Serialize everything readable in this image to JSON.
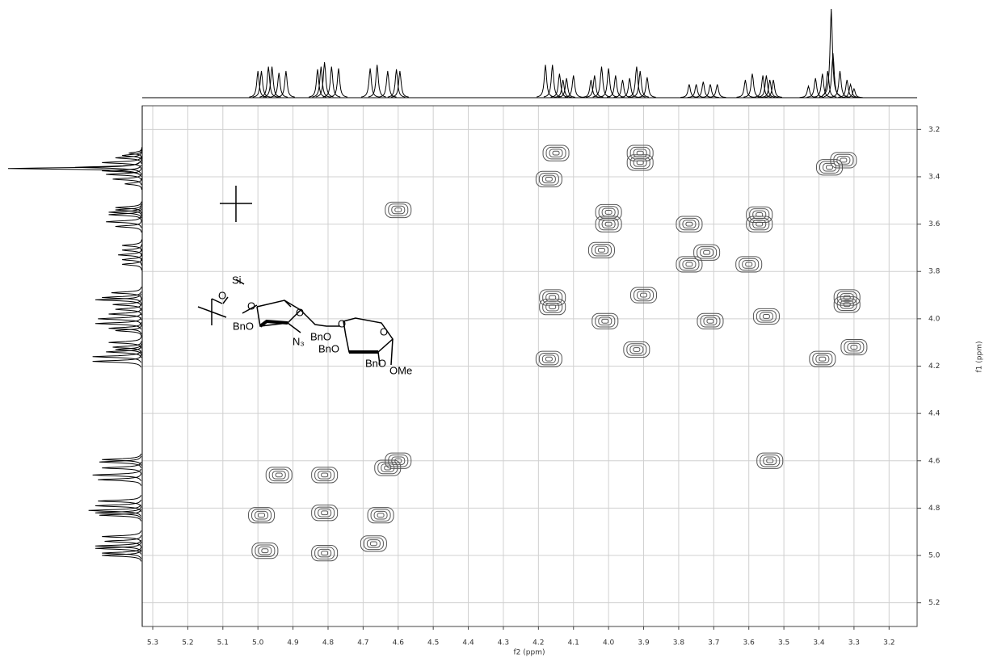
{
  "chart_data": {
    "type": "nmr2d",
    "xlabel": "f2 (ppm)",
    "ylabel": "f1 (ppm)",
    "xlim": [
      5.33,
      3.12
    ],
    "ylim": [
      3.1,
      5.3
    ],
    "xticks": [
      {
        "value": 5.3,
        "label": "5.3"
      },
      {
        "value": 5.2,
        "label": "5.2"
      },
      {
        "value": 5.1,
        "label": "5.1"
      },
      {
        "value": 5.0,
        "label": "5.0"
      },
      {
        "value": 4.9,
        "label": "4.9"
      },
      {
        "value": 4.8,
        "label": "4.8"
      },
      {
        "value": 4.7,
        "label": "4.7"
      },
      {
        "value": 4.6,
        "label": "4.6"
      },
      {
        "value": 4.5,
        "label": "4.5"
      },
      {
        "value": 4.4,
        "label": "4.4"
      },
      {
        "value": 4.3,
        "label": "4.3"
      },
      {
        "value": 4.2,
        "label": "4.2"
      },
      {
        "value": 4.1,
        "label": "4.1"
      },
      {
        "value": 4.0,
        "label": "4.0"
      },
      {
        "value": 3.9,
        "label": "3.9"
      },
      {
        "value": 3.8,
        "label": "3.8"
      },
      {
        "value": 3.7,
        "label": "3.7"
      },
      {
        "value": 3.6,
        "label": "3.6"
      },
      {
        "value": 3.5,
        "label": "3.5"
      },
      {
        "value": 3.4,
        "label": "3.4"
      },
      {
        "value": 3.3,
        "label": "3.3"
      },
      {
        "value": 3.2,
        "label": "3.2"
      }
    ],
    "yticks": [
      {
        "value": 3.2,
        "label": "3.2"
      },
      {
        "value": 3.4,
        "label": "3.4"
      },
      {
        "value": 3.6,
        "label": "3.6"
      },
      {
        "value": 3.8,
        "label": "3.8"
      },
      {
        "value": 4.0,
        "label": "4.0"
      },
      {
        "value": 4.2,
        "label": "4.2"
      },
      {
        "value": 4.4,
        "label": "4.4"
      },
      {
        "value": 4.6,
        "label": "4.6"
      },
      {
        "value": 4.8,
        "label": "4.8"
      },
      {
        "value": 5.0,
        "label": "5.0"
      },
      {
        "value": 5.2,
        "label": "5.2"
      }
    ],
    "grid": true,
    "color": "#555555",
    "projection": {
      "ppm": [
        5.0,
        4.99,
        4.97,
        4.96,
        4.94,
        4.92,
        4.83,
        4.82,
        4.81,
        4.79,
        4.77,
        4.68,
        4.66,
        4.63,
        4.605,
        4.595,
        4.18,
        4.16,
        4.14,
        4.13,
        4.12,
        4.1,
        4.05,
        4.04,
        4.02,
        4.0,
        3.98,
        3.96,
        3.94,
        3.92,
        3.91,
        3.89,
        3.77,
        3.75,
        3.73,
        3.71,
        3.69,
        3.61,
        3.59,
        3.56,
        3.55,
        3.54,
        3.53,
        3.43,
        3.41,
        3.39,
        3.375,
        3.365,
        3.36,
        3.34,
        3.32,
        3.31,
        3.3
      ],
      "intensity": [
        0.3,
        0.3,
        0.35,
        0.35,
        0.28,
        0.3,
        0.32,
        0.35,
        0.4,
        0.35,
        0.33,
        0.33,
        0.37,
        0.3,
        0.32,
        0.3,
        0.37,
        0.37,
        0.27,
        0.2,
        0.22,
        0.25,
        0.2,
        0.25,
        0.35,
        0.33,
        0.25,
        0.2,
        0.22,
        0.35,
        0.3,
        0.23,
        0.15,
        0.15,
        0.18,
        0.15,
        0.15,
        0.2,
        0.27,
        0.25,
        0.25,
        0.2,
        0.2,
        0.13,
        0.22,
        0.27,
        0.3,
        1.0,
        0.5,
        0.3,
        0.2,
        0.15,
        0.1
      ]
    },
    "cross_peaks": {
      "x": [
        4.15,
        4.17,
        3.91,
        3.91,
        4.6,
        4.0,
        4.0,
        4.02,
        3.77,
        3.57,
        3.57,
        3.6,
        3.72,
        3.77,
        4.16,
        4.16,
        3.32,
        3.32,
        3.71,
        3.55,
        3.92,
        3.39,
        3.3,
        3.54,
        4.94,
        4.81,
        4.99,
        4.81,
        4.65,
        4.98,
        4.81,
        4.67,
        4.63,
        4.6,
        4.17,
        4.01,
        3.9,
        3.37,
        3.33
      ],
      "y": [
        3.3,
        3.41,
        3.3,
        3.34,
        3.54,
        3.55,
        3.6,
        3.71,
        3.6,
        3.56,
        3.6,
        3.77,
        3.72,
        3.77,
        3.91,
        3.95,
        3.91,
        3.94,
        4.01,
        3.99,
        4.13,
        4.17,
        4.12,
        4.6,
        4.66,
        4.66,
        4.83,
        4.82,
        4.83,
        4.98,
        4.99,
        4.95,
        4.63,
        4.6,
        4.17,
        4.01,
        3.9,
        3.36,
        3.33
      ]
    },
    "annotations": [
      "Si",
      "O",
      "O",
      "BnO",
      "O",
      "N₃",
      "O",
      "BnO",
      "BnO",
      "O",
      "BnO",
      "OMe"
    ]
  }
}
